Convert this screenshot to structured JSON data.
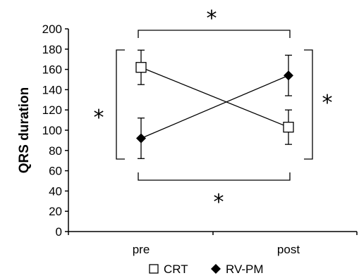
{
  "chart_data": {
    "type": "line",
    "ylabel": "QRS duration",
    "xlabel": "",
    "categories": [
      "pre",
      "post"
    ],
    "ylim": [
      0,
      200
    ],
    "yticks": [
      0,
      20,
      40,
      60,
      80,
      100,
      120,
      140,
      160,
      180,
      200
    ],
    "grid": false,
    "legend_position": "bottom",
    "series": [
      {
        "name": "CRT",
        "marker": "open-square",
        "values": [
          162,
          103
        ],
        "error": [
          17,
          17
        ]
      },
      {
        "name": "RV-PM",
        "marker": "filled-diamond",
        "values": [
          92,
          154
        ],
        "error": [
          20,
          20
        ]
      }
    ],
    "annotations": [
      {
        "text": "*",
        "type": "significance",
        "between": "pre-post",
        "location": "top"
      },
      {
        "text": "*",
        "type": "significance",
        "between": "pre-post",
        "location": "bottom"
      },
      {
        "text": "*",
        "type": "significance",
        "between": "CRT-RV-PM",
        "location": "pre"
      },
      {
        "text": "*",
        "type": "significance",
        "between": "CRT-RV-PM",
        "location": "post"
      }
    ]
  }
}
